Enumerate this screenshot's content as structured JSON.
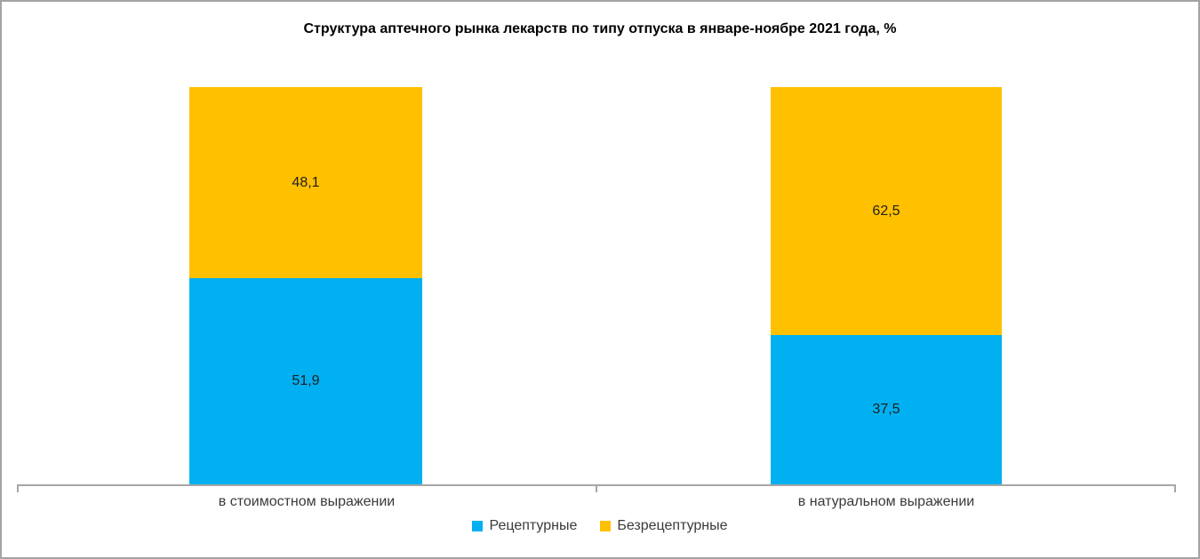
{
  "chart_data": {
    "type": "bar",
    "stacked": true,
    "title": "Структура аптечного рынка лекарств по типу отпуска в январе-ноябре 2021 года, %",
    "categories": [
      "в стоимостном выражении",
      "в натуральном выражении"
    ],
    "series": [
      {
        "name": "Рецептурные",
        "color": "#00B0F0",
        "values": [
          51.9,
          37.5
        ],
        "labels": [
          "51,9",
          "37,5"
        ]
      },
      {
        "name": "Безрецептурные",
        "color": "#FFC000",
        "values": [
          48.1,
          62.5
        ],
        "labels": [
          "48,1",
          "62,5"
        ]
      }
    ],
    "ylim": [
      0,
      100
    ],
    "grid": false,
    "legend_position": "bottom",
    "value_suffix": "%",
    "axis_color": "#A6A6A6"
  }
}
